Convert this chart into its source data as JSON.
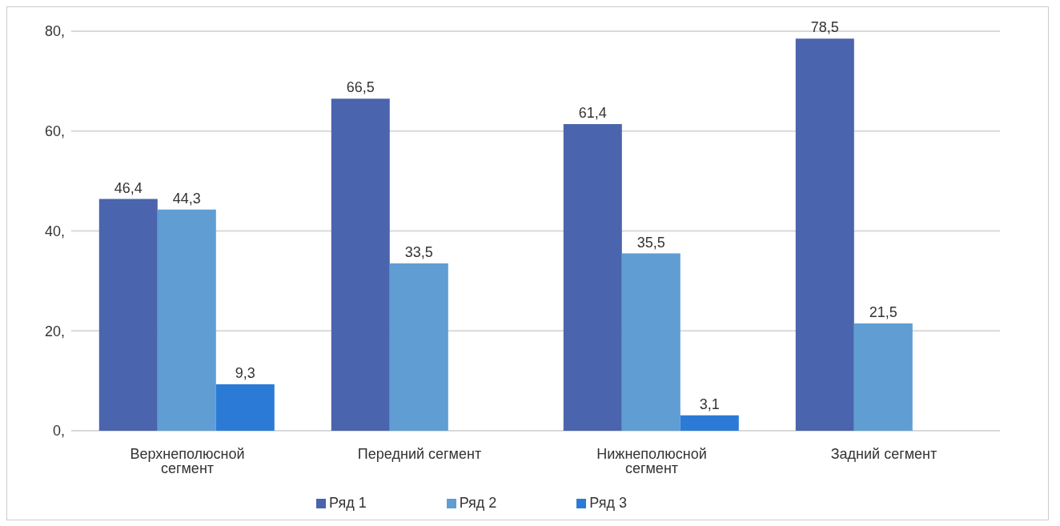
{
  "chart_data": {
    "type": "bar",
    "categories": [
      "Верхнеполюсной сегмент",
      "Передний сегмент",
      "Нижнеполюсной сегмент",
      "Задний сегмент"
    ],
    "series": [
      {
        "name": "Ряд 1",
        "color": "#4a64ad",
        "values": [
          46.4,
          66.5,
          61.4,
          78.5
        ],
        "value_labels": [
          "46,4",
          "66,5",
          "61,4",
          "78,5"
        ]
      },
      {
        "name": "Ряд 2",
        "color": "#5f9dd3",
        "values": [
          44.3,
          33.5,
          35.5,
          21.5
        ],
        "value_labels": [
          "44,3",
          "33,5",
          "35,5",
          "21,5"
        ]
      },
      {
        "name": "Ряд 3",
        "color": "#2b7bd6",
        "values": [
          9.3,
          null,
          3.1,
          null
        ],
        "value_labels": [
          "9,3",
          null,
          "3,1",
          null
        ]
      }
    ],
    "ylim": [
      0,
      80
    ],
    "yticks": [
      {
        "value": 0,
        "label": "0,"
      },
      {
        "value": 20,
        "label": "20,"
      },
      {
        "value": 40,
        "label": "40,"
      },
      {
        "value": 60,
        "label": "60,"
      },
      {
        "value": 80,
        "label": "80,"
      }
    ],
    "grid": "y",
    "legend": "bottom"
  }
}
